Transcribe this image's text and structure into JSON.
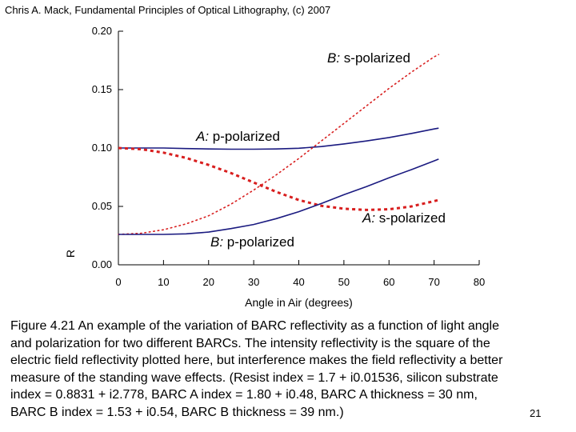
{
  "header": {
    "credit": "Chris A. Mack, Fundamental Principles of Optical Lithography, (c) 2007"
  },
  "chart_data": {
    "type": "line",
    "title": "",
    "xlabel": "Angle in Air (degrees)",
    "ylabel": "R",
    "xlim": [
      0,
      80
    ],
    "ylim": [
      0,
      0.2
    ],
    "x_ticks": [
      0,
      10,
      20,
      30,
      40,
      50,
      60,
      70,
      80
    ],
    "x_tick_labels": [
      "0",
      "10",
      "20",
      "30",
      "40",
      "50",
      "60",
      "70",
      "80"
    ],
    "y_ticks": [
      0,
      0.05,
      0.1,
      0.15,
      0.2
    ],
    "y_tick_labels": [
      "0.00",
      "0.05",
      "0.10",
      "0.15",
      "0.20"
    ],
    "grid": false,
    "series": [
      {
        "name": "A: p-polarized",
        "label_prefix": "A:",
        "label_rest": "p-polarized",
        "color": "#1a1a80",
        "style": "solid",
        "x": [
          0,
          5,
          10,
          15,
          20,
          25,
          30,
          35,
          40,
          45,
          50,
          55,
          60,
          65,
          70,
          71
        ],
        "y": [
          0.1,
          0.1,
          0.1,
          0.0995,
          0.0992,
          0.099,
          0.099,
          0.0992,
          0.0998,
          0.1012,
          0.1035,
          0.106,
          0.109,
          0.1125,
          0.1163,
          0.117
        ]
      },
      {
        "name": "A: s-polarized",
        "label_prefix": "A:",
        "label_rest": "s-polarized",
        "color": "#d81e1e",
        "style": "dashed",
        "x": [
          0,
          5,
          10,
          15,
          20,
          25,
          30,
          35,
          40,
          45,
          50,
          55,
          60,
          65,
          70,
          71
        ],
        "y": [
          0.1,
          0.099,
          0.096,
          0.0915,
          0.0855,
          0.0785,
          0.0705,
          0.0625,
          0.0555,
          0.0505,
          0.048,
          0.047,
          0.0475,
          0.05,
          0.0545,
          0.0555
        ]
      },
      {
        "name": "B: s-polarized",
        "label_prefix": "B:",
        "label_rest": "s-polarized",
        "color": "#d81e1e",
        "style": "dotted",
        "x": [
          0,
          5,
          10,
          15,
          20,
          25,
          30,
          35,
          40,
          45,
          50,
          55,
          60,
          65,
          70,
          71
        ],
        "y": [
          0.026,
          0.027,
          0.03,
          0.035,
          0.042,
          0.052,
          0.064,
          0.077,
          0.091,
          0.106,
          0.121,
          0.136,
          0.151,
          0.165,
          0.178,
          0.18
        ]
      },
      {
        "name": "B: p-polarized",
        "label_prefix": "B:",
        "label_rest": "p-polarized",
        "color": "#1a1a80",
        "style": "solid",
        "x": [
          0,
          5,
          10,
          15,
          20,
          25,
          30,
          35,
          40,
          45,
          50,
          55,
          60,
          65,
          70,
          71
        ],
        "y": [
          0.026,
          0.026,
          0.026,
          0.0265,
          0.028,
          0.031,
          0.0345,
          0.0395,
          0.0455,
          0.0525,
          0.06,
          0.067,
          0.0745,
          0.0815,
          0.089,
          0.0905
        ]
      }
    ]
  },
  "caption": {
    "lines": [
      "Figure 4.21  An example of the variation of BARC reflectivity as a function of light angle",
      "and polarization for two different BARCs. The intensity reflectivity is the square of the",
      "electric field reflectivity plotted here, but interference makes the field reflectivity a better",
      "measure of the standing wave effects. (Resist index = 1.7 + i0.01536, silicon substrate",
      "index = 0.8831 + i2.778, BARC A index = 1.80 + i0.48, BARC A thickness = 30 nm,",
      "BARC B index = 1.53 + i0.54, BARC B thickness = 39 nm.)"
    ]
  },
  "slide_number": "21"
}
